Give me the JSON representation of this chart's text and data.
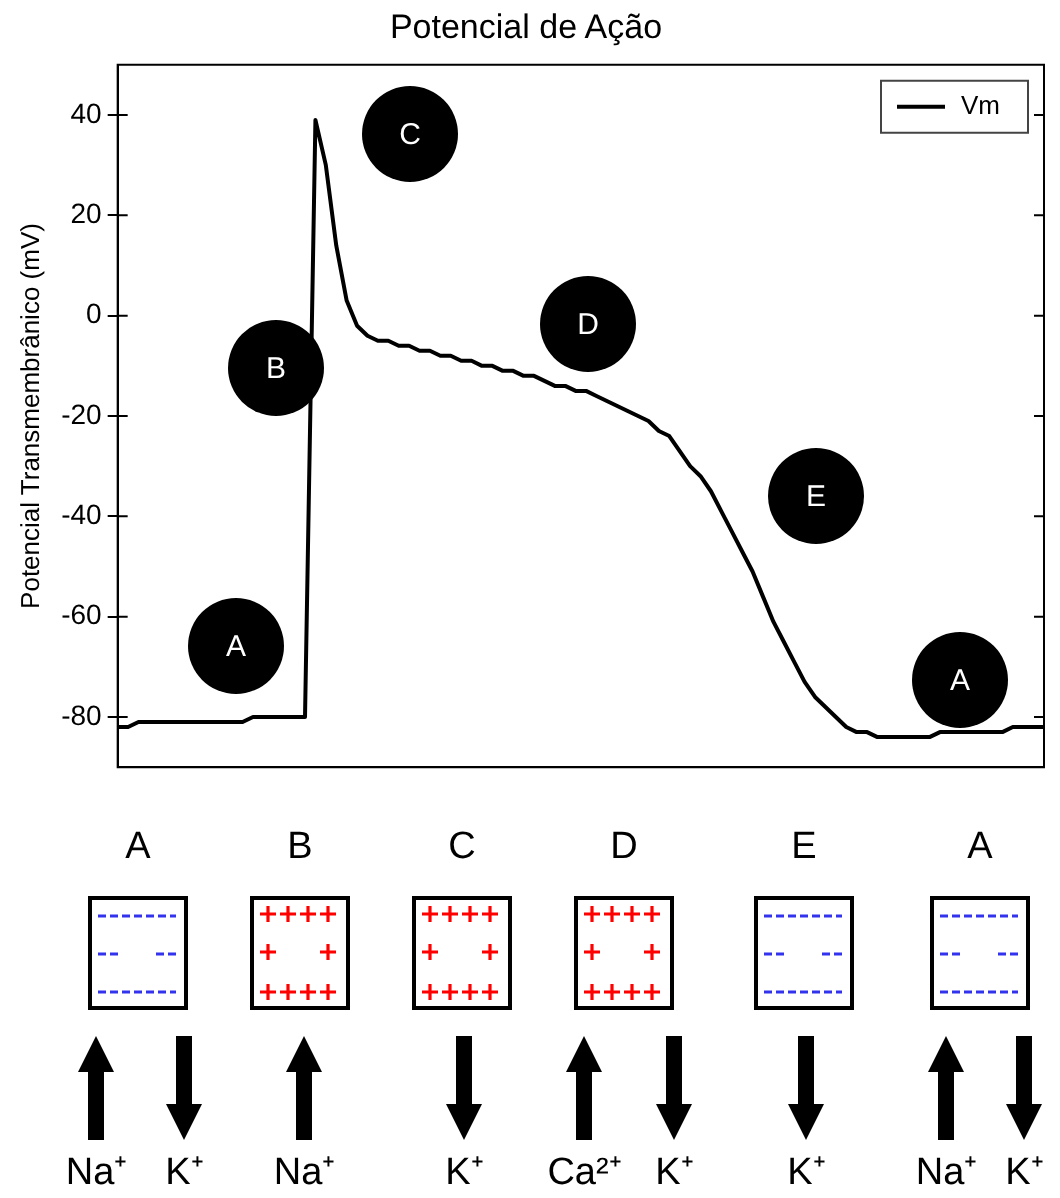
{
  "chart_data": {
    "type": "line",
    "title": "Potencial de Ação",
    "ylabel": "Potencial Transmembrânico (mV)",
    "categories": [
      null,
      null,
      null,
      null,
      null,
      null,
      null,
      null,
      null,
      null,
      null,
      null,
      null,
      null,
      null,
      null,
      null,
      null,
      null,
      null,
      null,
      null,
      null,
      null,
      null,
      null,
      null,
      null,
      null,
      null,
      null,
      null,
      null,
      null,
      null,
      null,
      null,
      null,
      null,
      null,
      null,
      null,
      null,
      null,
      null,
      null,
      null,
      null,
      null,
      null,
      null,
      null,
      null,
      null,
      null,
      null,
      null,
      null,
      null,
      null,
      null,
      null,
      null,
      null,
      null,
      null,
      null,
      null,
      null,
      null,
      null,
      null,
      null,
      null,
      null,
      null,
      null,
      null,
      null,
      null,
      null,
      null,
      null,
      null,
      null,
      null,
      null,
      null,
      null,
      null
    ],
    "series": [
      {
        "name": "Vm",
        "color": "#000000",
        "values": [
          -82,
          -82,
          -81,
          -81,
          -81,
          -81,
          -81,
          -81,
          -81,
          -81,
          -81,
          -81,
          -81,
          -80,
          -80,
          -80,
          -80,
          -80,
          -80,
          39,
          30,
          14,
          3,
          -2,
          -4,
          -5,
          -5,
          -6,
          -6,
          -7,
          -7,
          -8,
          -8,
          -9,
          -9,
          -10,
          -10,
          -11,
          -11,
          -12,
          -12,
          -13,
          -14,
          -14,
          -15,
          -15,
          -16,
          -17,
          -18,
          -19,
          -20,
          -21,
          -23,
          -24,
          -27,
          -30,
          -32,
          -35,
          -39,
          -43,
          -47,
          -51,
          -56,
          -61,
          -65,
          -69,
          -73,
          -76,
          -78,
          -80,
          -82,
          -83,
          -83,
          -84,
          -84,
          -84,
          -84,
          -84,
          -84,
          -83,
          -83,
          -83,
          -83,
          -83,
          -83,
          -83,
          -82,
          -82,
          -82,
          -82
        ]
      }
    ],
    "ylim": [
      -90,
      50
    ],
    "yticks": [
      -80,
      -60,
      -40,
      -20,
      0,
      20,
      40
    ],
    "grid": false,
    "legend": "top right",
    "marker": "none",
    "line_style": "solid",
    "annotations": [
      "A",
      "B",
      "C",
      "D",
      "E",
      "A",
      "A",
      "B",
      "C",
      "D",
      "E",
      "A",
      "Na⁺",
      "K⁺",
      "Na⁺",
      "K⁺",
      "Ca²⁺",
      "K⁺",
      "K⁺",
      "Na⁺",
      "K⁺"
    ]
  }
}
